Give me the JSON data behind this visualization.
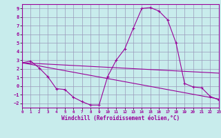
{
  "xlabel": "Windchill (Refroidissement éolien,°C)",
  "xlim": [
    0,
    23
  ],
  "ylim": [
    -2.5,
    9.5
  ],
  "yticks": [
    -2,
    -1,
    0,
    1,
    2,
    3,
    4,
    5,
    6,
    7,
    8,
    9
  ],
  "xticks": [
    0,
    1,
    2,
    3,
    4,
    5,
    6,
    7,
    8,
    9,
    10,
    11,
    12,
    13,
    14,
    15,
    16,
    17,
    18,
    19,
    20,
    21,
    22,
    23
  ],
  "bg_color": "#c8ecec",
  "line_color": "#990099",
  "grid_color": "#9999bb",
  "line1_x": [
    0,
    1,
    2,
    3,
    4,
    5,
    6,
    7,
    8,
    9,
    10,
    11,
    12,
    13,
    14,
    15,
    16,
    17,
    18,
    19,
    20,
    21,
    22,
    23
  ],
  "line1_y": [
    2.7,
    2.9,
    2.1,
    1.1,
    -0.3,
    -0.4,
    -1.3,
    -1.8,
    -2.2,
    -2.2,
    1.1,
    3.0,
    4.3,
    6.7,
    9.0,
    9.1,
    8.7,
    7.7,
    5.0,
    0.3,
    -0.1,
    -0.2,
    -1.2,
    -1.6
  ],
  "line2_x": [
    0,
    23
  ],
  "line2_y": [
    2.7,
    1.5
  ],
  "line3_x": [
    0,
    23
  ],
  "line3_y": [
    2.7,
    -1.5
  ]
}
